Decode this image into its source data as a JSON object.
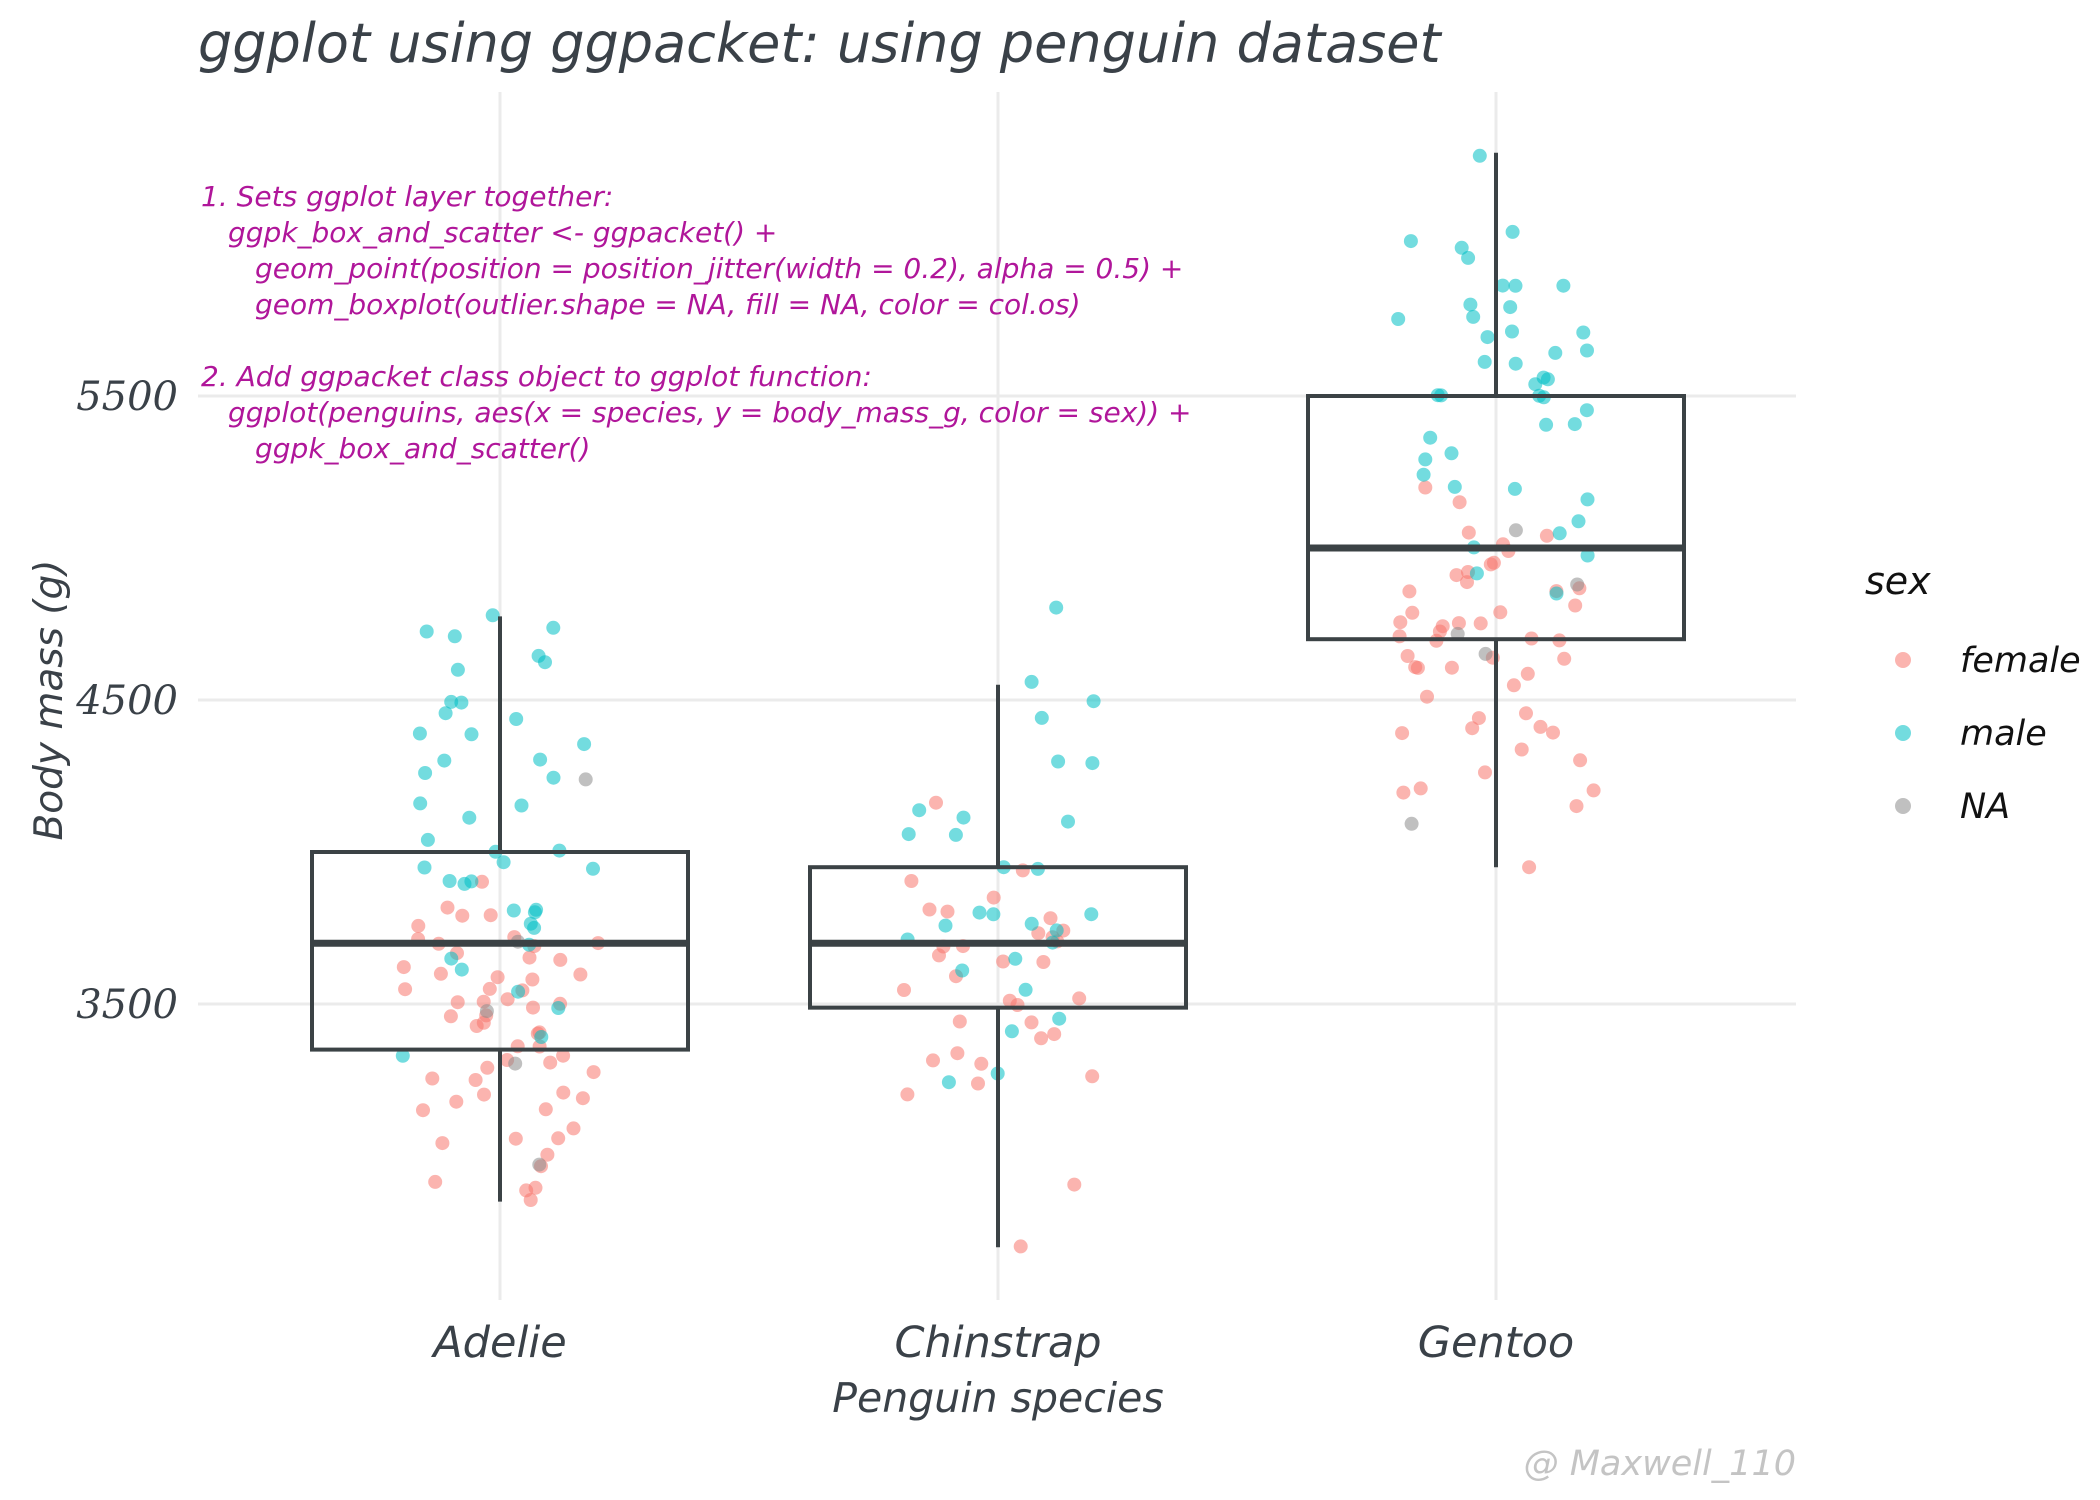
{
  "chart_data": {
    "type": "box+scatter",
    "title": "ggplot using ggpacket: using penguin dataset",
    "xlabel": "Penguin species",
    "ylabel": "Body mass (g)",
    "categories": [
      "Adelie",
      "Chinstrap",
      "Gentoo"
    ],
    "yticks": [
      3500,
      4500,
      5500
    ],
    "ylim": [
      2550,
      6500
    ],
    "grid": "major",
    "legend": {
      "title": "sex",
      "placement": "right",
      "entries": [
        {
          "key": "female",
          "label": "female",
          "color": "#f8766d"
        },
        {
          "key": "male",
          "label": "male",
          "color": "#00bfc4"
        },
        {
          "key": "NA",
          "label": "NA",
          "color": "#8c8c8c"
        }
      ]
    },
    "box_color": "#3b4245",
    "boxes": [
      {
        "species": "Adelie",
        "min": 2850,
        "q1": 3350,
        "median": 3700,
        "q3": 4000,
        "max": 4775
      },
      {
        "species": "Chinstrap",
        "min": 2700,
        "q1": 3488,
        "median": 3700,
        "q3": 3950,
        "max": 4550
      },
      {
        "species": "Gentoo",
        "min": 3950,
        "q1": 4700,
        "median": 5000,
        "q3": 5500,
        "max": 6300
      }
    ],
    "points": {
      "Adelie": {
        "female": [
          2850,
          2900,
          2900,
          2925,
          2975,
          3000,
          3050,
          3050,
          3050,
          3100,
          3150,
          3150,
          3175,
          3200,
          3200,
          3200,
          3250,
          3250,
          3275,
          3300,
          3300,
          3325,
          3325,
          3350,
          3350,
          3400,
          3400,
          3425,
          3450,
          3450,
          3450,
          3475,
          3500,
          3500,
          3500,
          3525,
          3550,
          3550,
          3550,
          3575,
          3600,
          3600,
          3600,
          3625,
          3650,
          3650,
          3675,
          3700,
          3700,
          3700,
          3725,
          3725,
          3750,
          3800,
          3800,
          3825,
          3900
        ],
        "male": [
          3325,
          3400,
          3500,
          3550,
          3600,
          3650,
          3700,
          3750,
          3775,
          3800,
          3800,
          3800,
          3900,
          3900,
          3900,
          3950,
          3950,
          3975,
          4000,
          4000,
          4050,
          4100,
          4150,
          4150,
          4250,
          4250,
          4300,
          4300,
          4350,
          4400,
          4400,
          4450,
          4450,
          4500,
          4500,
          4600,
          4625,
          4650,
          4700,
          4725,
          4725,
          4775
        ],
        "NA": [
          2975,
          3300,
          3475,
          3700,
          4250
        ]
      },
      "Chinstrap": {
        "female": [
          2700,
          2900,
          3200,
          3250,
          3250,
          3300,
          3325,
          3350,
          3400,
          3400,
          3450,
          3450,
          3500,
          3500,
          3525,
          3550,
          3600,
          3650,
          3650,
          3650,
          3700,
          3700,
          3700,
          3725,
          3725,
          3750,
          3775,
          3800,
          3800,
          3850,
          3900,
          3950,
          4150
        ],
        "male": [
          3250,
          3275,
          3400,
          3450,
          3550,
          3600,
          3650,
          3700,
          3725,
          3750,
          3750,
          3775,
          3800,
          3800,
          3800,
          3950,
          3950,
          4050,
          4050,
          4100,
          4100,
          4150,
          4300,
          4300,
          4450,
          4500,
          4550,
          4800
        ]
      },
      "Gentoo": {
        "female": [
          3950,
          4150,
          4200,
          4200,
          4200,
          4250,
          4300,
          4350,
          4400,
          4400,
          4400,
          4400,
          4450,
          4450,
          4500,
          4550,
          4575,
          4600,
          4600,
          4600,
          4625,
          4650,
          4650,
          4700,
          4700,
          4700,
          4700,
          4725,
          4750,
          4750,
          4750,
          4750,
          4775,
          4800,
          4800,
          4850,
          4850,
          4875,
          4900,
          4900,
          4925,
          4950,
          4950,
          5000,
          5000,
          5050,
          5050,
          5200,
          5150
        ],
        "male": [
          4850,
          4925,
          4975,
          5000,
          5050,
          5100,
          5150,
          5200,
          5200,
          5250,
          5300,
          5300,
          5350,
          5400,
          5400,
          5450,
          5500,
          5500,
          5500,
          5500,
          5550,
          5550,
          5550,
          5600,
          5600,
          5650,
          5650,
          5700,
          5700,
          5700,
          5750,
          5750,
          5800,
          5800,
          5850,
          5850,
          5850,
          5950,
          6000,
          6000,
          6050,
          6300
        ],
        "NA": [
          4100,
          4650,
          4725,
          4875,
          5050
        ]
      }
    }
  },
  "annotation": {
    "lines": [
      "1. Sets ggplot layer together:",
      "   ggpk_box_and_scatter <- ggpacket() +",
      "      geom_point(position = position_jitter(width = 0.2), alpha = 0.5) +",
      "      geom_boxplot(outlier.shape = NA, fill = NA, color = col.os)",
      "",
      "2. Add ggpacket class object to ggplot function:",
      "   ggplot(penguins, aes(x = species, y = body_mass_g, color = sex)) +",
      "      ggpk_box_and_scatter()"
    ]
  },
  "credit": "@ Maxwell_110"
}
